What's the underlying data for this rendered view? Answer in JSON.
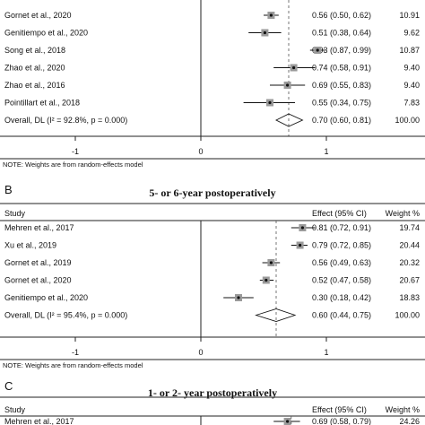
{
  "chart_data": [
    {
      "type": "forest",
      "panel": "",
      "title": "",
      "header": {
        "study": "",
        "effect": "",
        "weight": ""
      },
      "studies": [
        {
          "label": "Gornet et al., 2020",
          "effect": 0.56,
          "lower": 0.5,
          "upper": 0.62,
          "effect_text": "0.56 (0.50, 0.62)",
          "weight": "10.91"
        },
        {
          "label": "Genitiempo et al., 2020",
          "effect": 0.51,
          "lower": 0.38,
          "upper": 0.64,
          "effect_text": "0.51 (0.38, 0.64)",
          "weight": "9.62"
        },
        {
          "label": "Song et al., 2018",
          "effect": 0.93,
          "lower": 0.87,
          "upper": 0.99,
          "effect_text": "0.93 (0.87, 0.99)",
          "weight": "10.87"
        },
        {
          "label": "Zhao et al., 2020",
          "effect": 0.74,
          "lower": 0.58,
          "upper": 0.91,
          "effect_text": "0.74 (0.58, 0.91)",
          "weight": "9.40"
        },
        {
          "label": "Zhao et al., 2016",
          "effect": 0.69,
          "lower": 0.55,
          "upper": 0.83,
          "effect_text": "0.69 (0.55, 0.83)",
          "weight": "9.40"
        },
        {
          "label": "Pointillart et al., 2018",
          "effect": 0.55,
          "lower": 0.34,
          "upper": 0.75,
          "effect_text": "0.55 (0.34, 0.75)",
          "weight": "7.83"
        }
      ],
      "overall": {
        "label": "Overall, DL (I² = 92.8%, p = 0.000)",
        "effect": 0.7,
        "lower": 0.6,
        "upper": 0.81,
        "effect_text": "0.70 (0.60, 0.81)",
        "weight": "100.00"
      },
      "x_ticks": [
        -1,
        0,
        1
      ],
      "x_tick_labels": [
        "-1",
        "0",
        "1"
      ],
      "xlim": [
        -1.6,
        1.6
      ],
      "note": "NOTE: Weights are from random-effects model"
    },
    {
      "type": "forest",
      "panel": "B",
      "title": "5- or 6-year postoperatively",
      "header": {
        "study": "Study",
        "effect": "Effect (95% CI)",
        "weight": "Weight %"
      },
      "studies": [
        {
          "label": "Mehren et al., 2017",
          "effect": 0.81,
          "lower": 0.72,
          "upper": 0.91,
          "effect_text": "0.81 (0.72, 0.91)",
          "weight": "19.74"
        },
        {
          "label": "Xu et al., 2019",
          "effect": 0.79,
          "lower": 0.72,
          "upper": 0.85,
          "effect_text": "0.79 (0.72, 0.85)",
          "weight": "20.44"
        },
        {
          "label": "Gornet et al., 2019",
          "effect": 0.56,
          "lower": 0.49,
          "upper": 0.63,
          "effect_text": "0.56 (0.49, 0.63)",
          "weight": "20.32"
        },
        {
          "label": "Gornet et al., 2020",
          "effect": 0.52,
          "lower": 0.47,
          "upper": 0.58,
          "effect_text": "0.52 (0.47, 0.58)",
          "weight": "20.67"
        },
        {
          "label": "Genitiempo et al., 2020",
          "effect": 0.3,
          "lower": 0.18,
          "upper": 0.42,
          "effect_text": "0.30 (0.18, 0.42)",
          "weight": "18.83"
        }
      ],
      "overall": {
        "label": "Overall, DL (I² = 95.4%, p = 0.000)",
        "effect": 0.6,
        "lower": 0.44,
        "upper": 0.75,
        "effect_text": "0.60 (0.44, 0.75)",
        "weight": "100.00"
      },
      "x_ticks": [
        -1,
        0,
        1
      ],
      "x_tick_labels": [
        "-1",
        "0",
        "1"
      ],
      "xlim": [
        -1.6,
        1.6
      ],
      "note": "NOTE: Weights are from random-effects model"
    },
    {
      "type": "forest",
      "panel": "C",
      "title": "1- or 2- year postoperatively",
      "header": {
        "study": "Study",
        "effect": "Effect (95% CI)",
        "weight": "Weight %"
      },
      "studies": [
        {
          "label": "Mehren et al., 2017",
          "effect": 0.69,
          "lower": 0.58,
          "upper": 0.79,
          "effect_text": "0.69 (0.58, 0.79)",
          "weight": "24.26"
        }
      ],
      "xlim": [
        -1.6,
        1.6
      ]
    }
  ]
}
